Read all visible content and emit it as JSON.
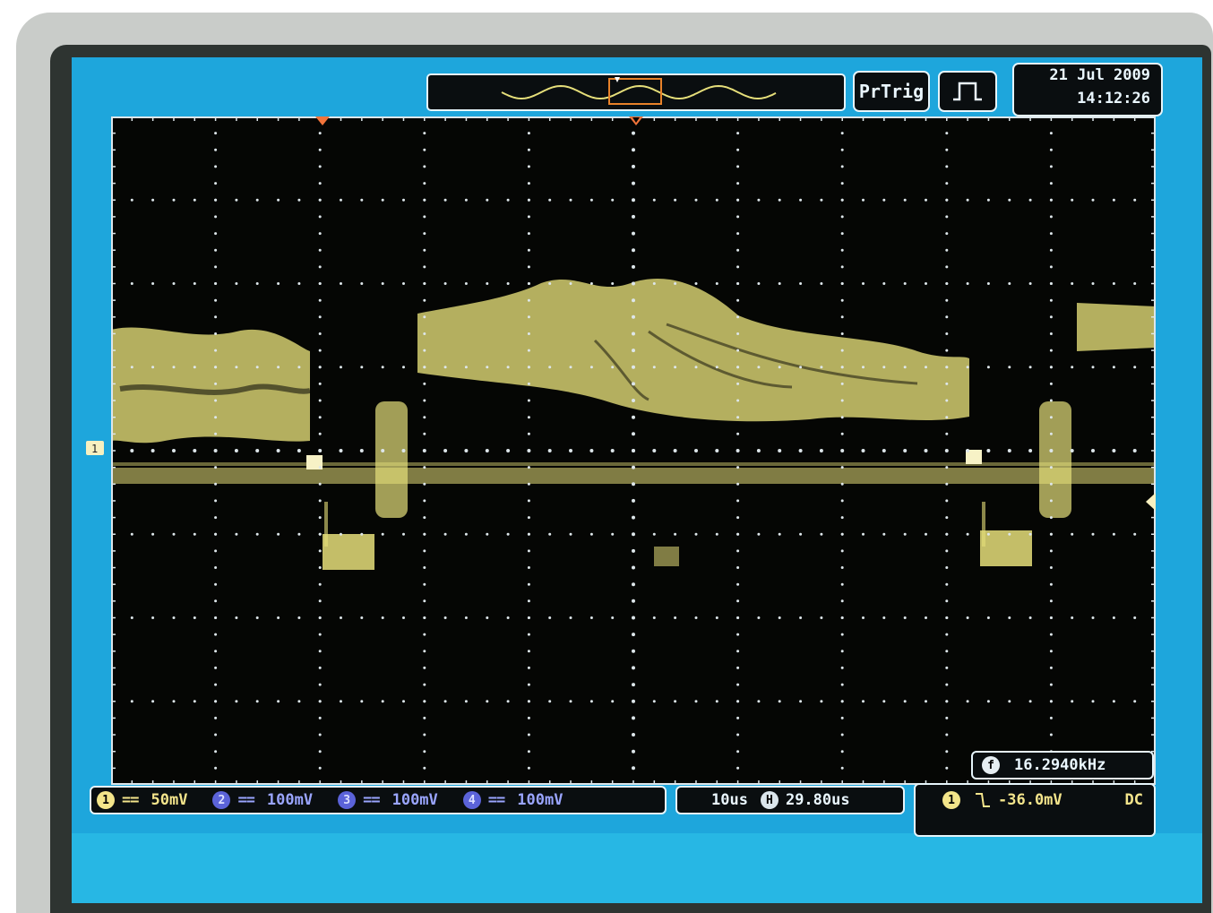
{
  "header": {
    "trigger_mode": "PrTrig",
    "trigger_type_icon": "pulse-icon",
    "date": "21 Jul 2009",
    "time": "14:12:26"
  },
  "channels": [
    {
      "num": "1",
      "coupling": "==",
      "scale": "50mV",
      "color": "#f4e58c"
    },
    {
      "num": "2",
      "coupling": "==",
      "scale": "100mV",
      "color": "#5b63d9"
    },
    {
      "num": "3",
      "coupling": "==",
      "scale": "100mV",
      "color": "#5b63d9"
    },
    {
      "num": "4",
      "coupling": "==",
      "scale": "100mV",
      "color": "#5b63d9"
    }
  ],
  "horizontal": {
    "timebase": "10us",
    "icon": "horizontal-position-icon",
    "position": "29.80us"
  },
  "trigger": {
    "source": "1",
    "slope_icon": "falling-edge-icon",
    "level": "-36.0mV",
    "coupling": "DC"
  },
  "frequency": {
    "icon": "frequency-icon",
    "value": "16.2940kHz"
  },
  "colors": {
    "trace": "#e6df7a",
    "screen": "#1ea6dc",
    "grid": "#dde6ea"
  },
  "grid": {
    "h_divisions": 10,
    "v_divisions": 8
  }
}
